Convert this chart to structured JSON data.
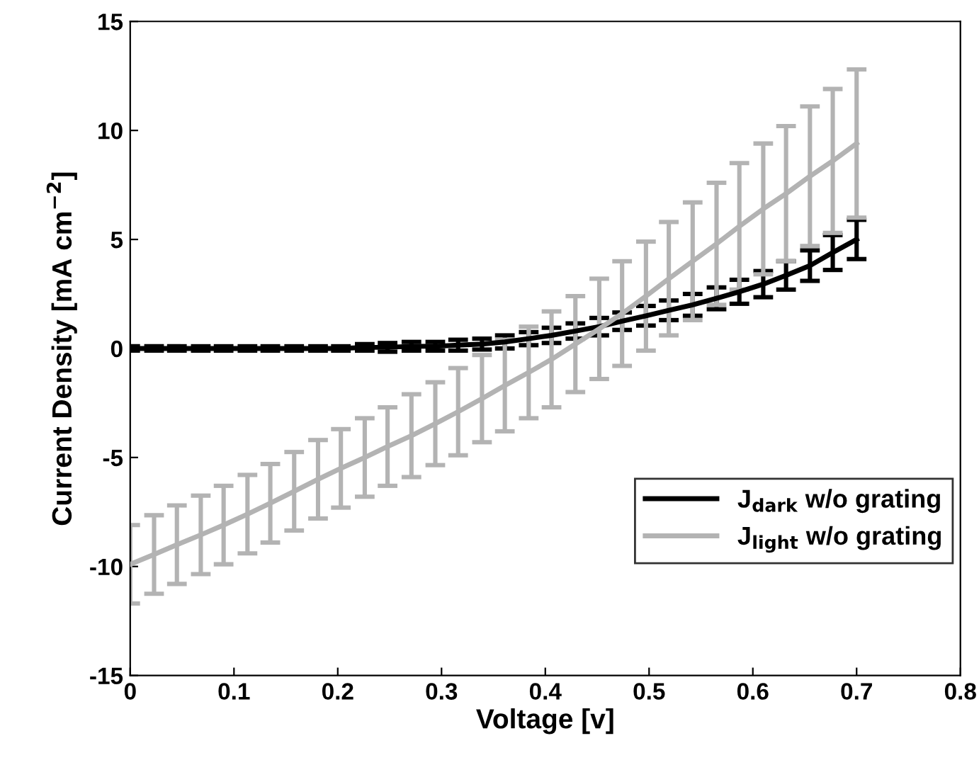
{
  "chart_data": {
    "type": "line",
    "xlabel": "Voltage [v]",
    "ylabel": "Current Density [mA cm$^{−2}$]",
    "x": [
      0,
      0.023,
      0.045,
      0.068,
      0.09,
      0.113,
      0.135,
      0.158,
      0.181,
      0.203,
      0.226,
      0.248,
      0.271,
      0.294,
      0.316,
      0.339,
      0.361,
      0.384,
      0.406,
      0.429,
      0.452,
      0.474,
      0.497,
      0.519,
      0.542,
      0.565,
      0.587,
      0.61,
      0.632,
      0.655,
      0.677,
      0.7
    ],
    "series": [
      {
        "name": "J$_{dark}$ w/o grating",
        "color": "#000000",
        "values": [
          0,
          0,
          0,
          0,
          0,
          0,
          0,
          0,
          0,
          0,
          0.05,
          0.05,
          0.1,
          0.1,
          0.15,
          0.2,
          0.3,
          0.45,
          0.6,
          0.8,
          1.0,
          1.25,
          1.5,
          1.75,
          2.0,
          2.3,
          2.6,
          2.95,
          3.35,
          3.8,
          4.4,
          5.0
        ],
        "errors": [
          0.1,
          0.1,
          0.1,
          0.1,
          0.1,
          0.1,
          0.1,
          0.1,
          0.1,
          0.1,
          0.15,
          0.2,
          0.2,
          0.2,
          0.25,
          0.25,
          0.3,
          0.3,
          0.35,
          0.35,
          0.4,
          0.4,
          0.45,
          0.45,
          0.5,
          0.5,
          0.55,
          0.6,
          0.65,
          0.7,
          0.8,
          0.9
        ]
      },
      {
        "name": "J$_{light}$ w/o grating",
        "color": "#b3b3b3",
        "values": [
          -9.9,
          -9.45,
          -9.0,
          -8.55,
          -8.1,
          -7.6,
          -7.1,
          -6.55,
          -6.0,
          -5.5,
          -5.0,
          -4.5,
          -4.0,
          -3.45,
          -2.9,
          -2.3,
          -1.7,
          -1.1,
          -0.5,
          0.2,
          0.9,
          1.6,
          2.4,
          3.2,
          4.0,
          4.8,
          5.6,
          6.4,
          7.1,
          7.9,
          8.6,
          9.4
        ],
        "errors": [
          1.8,
          1.8,
          1.8,
          1.8,
          1.8,
          1.8,
          1.8,
          1.8,
          1.8,
          1.8,
          1.8,
          1.8,
          1.9,
          1.9,
          2.0,
          2.0,
          2.1,
          2.1,
          2.2,
          2.2,
          2.3,
          2.4,
          2.5,
          2.6,
          2.7,
          2.8,
          2.9,
          3.0,
          3.1,
          3.2,
          3.3,
          3.4
        ]
      }
    ],
    "xlim": [
      0,
      0.8
    ],
    "xticks": [
      0,
      0.1,
      0.2,
      0.3,
      0.4,
      0.5,
      0.6,
      0.7,
      0.8
    ],
    "ylim": [
      -15,
      15
    ],
    "yticks": [
      -15,
      -10,
      -5,
      0,
      5,
      10,
      15
    ],
    "grid": false,
    "legend": "lower right",
    "line_style": "solid",
    "marker": "none"
  }
}
